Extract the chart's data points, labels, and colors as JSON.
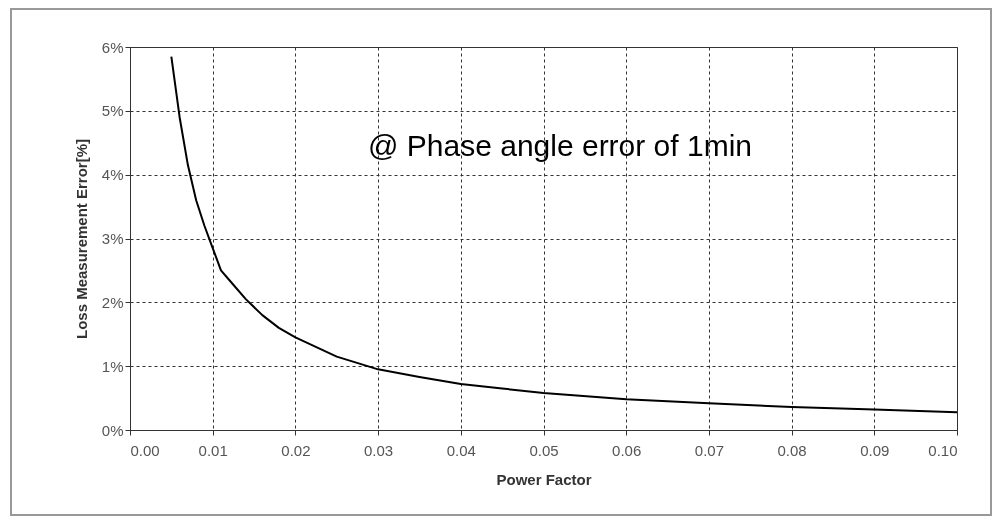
{
  "chart_data": {
    "type": "line",
    "xlabel": "Power Factor",
    "ylabel": "Loss Measurement Error[%]",
    "annotations": [
      "@ Phase angle error of 1min"
    ],
    "x": [
      0.005,
      0.006,
      0.007,
      0.008,
      0.009,
      0.01,
      0.011,
      0.012,
      0.014,
      0.016,
      0.018,
      0.02,
      0.025,
      0.03,
      0.035,
      0.04,
      0.045,
      0.05,
      0.06,
      0.07,
      0.08,
      0.09,
      0.1
    ],
    "series": [
      {
        "color": "#000000",
        "values": [
          5.85,
          4.9,
          4.15,
          3.6,
          3.2,
          2.85,
          2.5,
          2.35,
          2.05,
          1.8,
          1.6,
          1.45,
          1.15,
          0.95,
          0.83,
          0.72,
          0.65,
          0.58,
          0.48,
          0.42,
          0.36,
          0.32,
          0.28
        ]
      }
    ],
    "xlim": [
      0,
      0.1
    ],
    "xticks": [
      {
        "value": 0,
        "label": "0.00"
      },
      {
        "value": 0.01,
        "label": "0.01"
      },
      {
        "value": 0.02,
        "label": "0.02"
      },
      {
        "value": 0.03,
        "label": "0.03"
      },
      {
        "value": 0.04,
        "label": "0.04"
      },
      {
        "value": 0.05,
        "label": "0.05"
      },
      {
        "value": 0.06,
        "label": "0.06"
      },
      {
        "value": 0.07,
        "label": "0.07"
      },
      {
        "value": 0.08,
        "label": "0.08"
      },
      {
        "value": 0.09,
        "label": "0.09"
      },
      {
        "value": 0.1,
        "label": "0.10"
      }
    ],
    "ylim": [
      0,
      6
    ],
    "yticks": [
      {
        "value": 0,
        "label": "0%"
      },
      {
        "value": 1,
        "label": "1%"
      },
      {
        "value": 2,
        "label": "2%"
      },
      {
        "value": 3,
        "label": "3%"
      },
      {
        "value": 4,
        "label": "4%"
      },
      {
        "value": 5,
        "label": "5%"
      },
      {
        "value": 6,
        "label": "6%"
      }
    ],
    "grid": true,
    "marker": "none",
    "line_style": "solid"
  }
}
